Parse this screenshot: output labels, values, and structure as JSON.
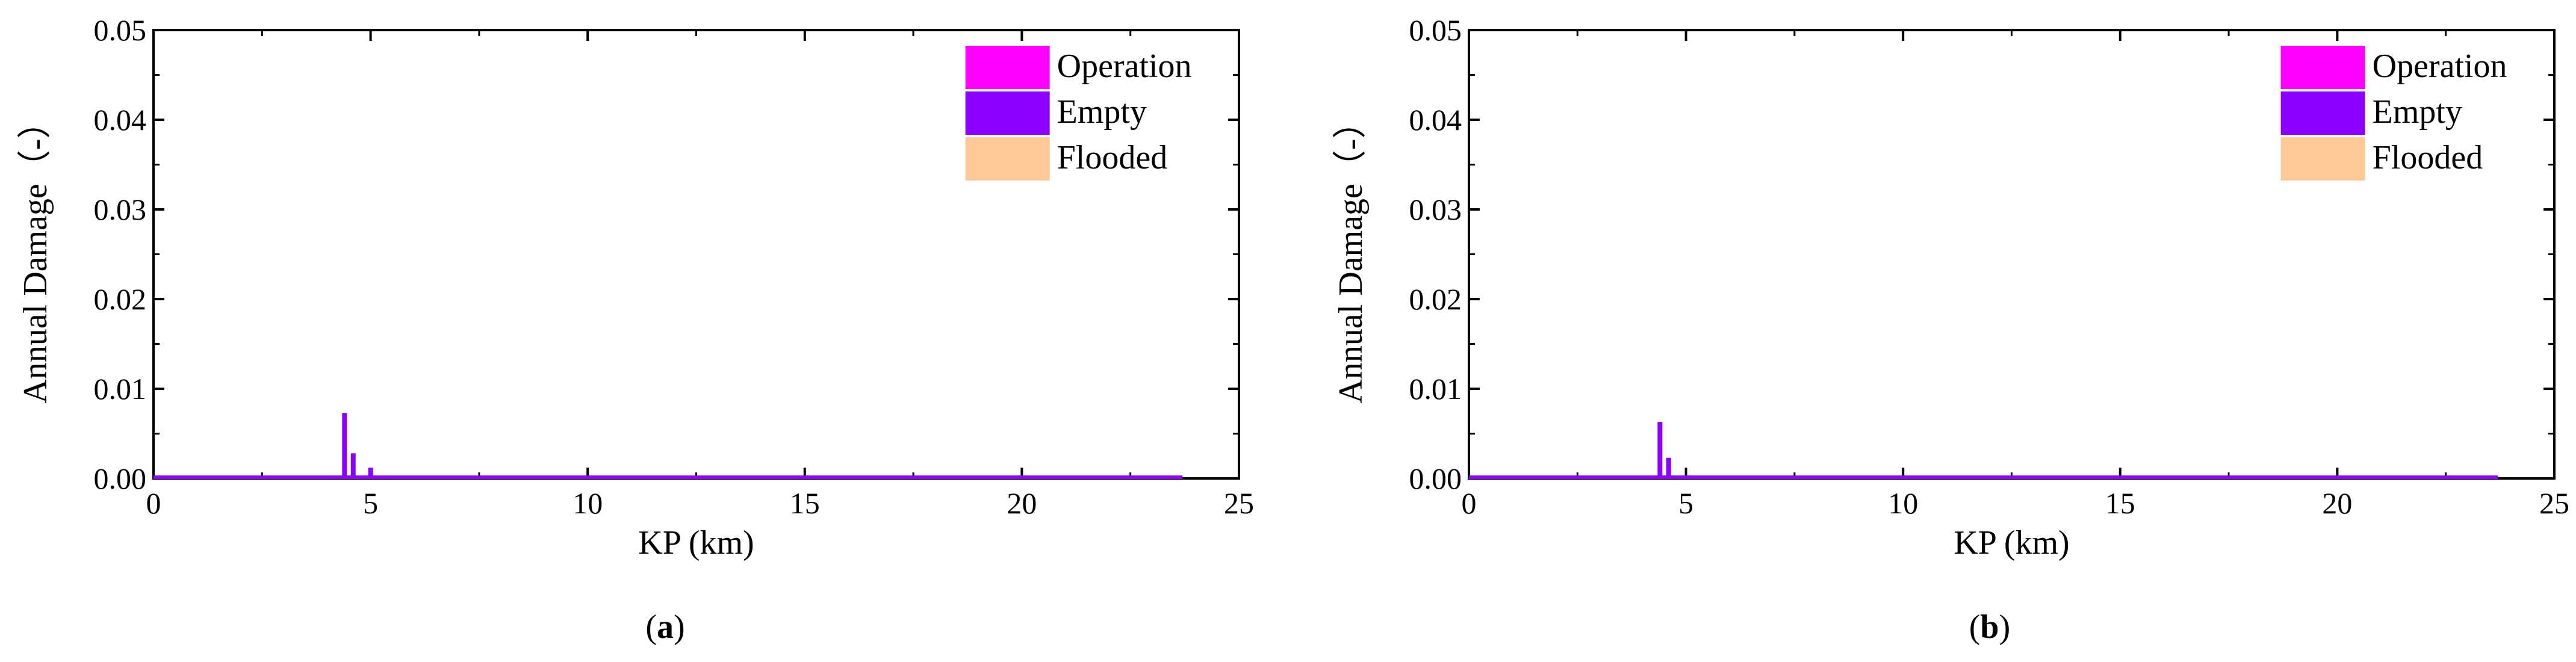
{
  "colors": {
    "operation": "#FF00FF",
    "empty": "#8B00FF",
    "flooded": "#FFC896",
    "axis": "#000000"
  },
  "chart_data": [
    {
      "type": "bar",
      "panel": "a",
      "caption": {
        "open": "(",
        "letter": "a",
        "close": ")"
      },
      "xlabel": "KP (km)",
      "ylabel": "Annual Damage（-）",
      "xlim": [
        0,
        25
      ],
      "ylim": [
        0,
        0.05
      ],
      "xticks": [
        "0",
        "5",
        "10",
        "15",
        "20",
        "25"
      ],
      "yticks": [
        "0.00",
        "0.01",
        "0.02",
        "0.03",
        "0.04",
        "0.05"
      ],
      "grid": false,
      "legend_position": "top-right",
      "series": [
        {
          "name": "Operation",
          "color": "#FF00FF",
          "points": []
        },
        {
          "name": "Empty",
          "color": "#8B00FF",
          "points": [
            [
              4.4,
              0.0073
            ],
            [
              4.6,
              0.0028
            ],
            [
              5.0,
              0.0012
            ],
            [
              0.0,
              0.0002
            ],
            [
              23.7,
              0.0002
            ]
          ]
        },
        {
          "name": "Flooded",
          "color": "#FFC896",
          "points": []
        }
      ]
    },
    {
      "type": "bar",
      "panel": "b",
      "caption": {
        "open": "(",
        "letter": "b",
        "close": ")"
      },
      "xlabel": "KP (km)",
      "ylabel": "Annual Damage（-）",
      "xlim": [
        0,
        25
      ],
      "ylim": [
        0,
        0.05
      ],
      "xticks": [
        "0",
        "5",
        "10",
        "15",
        "20",
        "25"
      ],
      "yticks": [
        "0.00",
        "0.01",
        "0.02",
        "0.03",
        "0.04",
        "0.05"
      ],
      "grid": false,
      "legend_position": "top-right",
      "series": [
        {
          "name": "Operation",
          "color": "#FF00FF",
          "points": []
        },
        {
          "name": "Empty",
          "color": "#8B00FF",
          "points": [
            [
              4.4,
              0.0063
            ],
            [
              4.6,
              0.0023
            ],
            [
              0.0,
              0.0002
            ],
            [
              23.7,
              0.0002
            ]
          ]
        },
        {
          "name": "Flooded",
          "color": "#FFC896",
          "points": []
        }
      ]
    }
  ]
}
